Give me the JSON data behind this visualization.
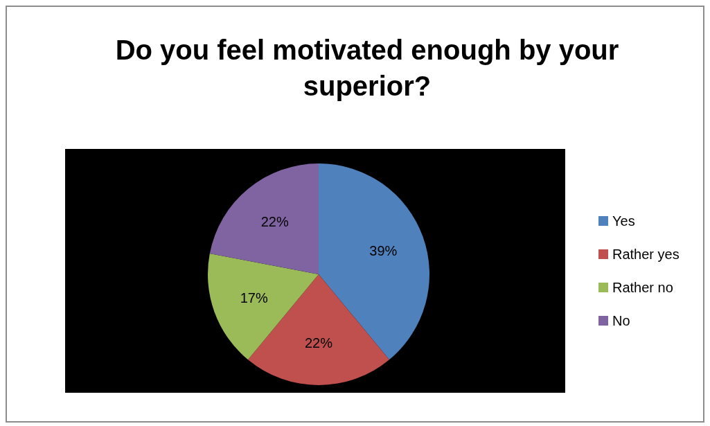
{
  "chart_data": {
    "type": "pie",
    "title": "Do you feel motivated enough by your superior?",
    "categories": [
      "Yes",
      "Rather yes",
      "Rather no",
      "No"
    ],
    "values": [
      39,
      22,
      17,
      22
    ],
    "colors": [
      "#4f81bd",
      "#c0504d",
      "#9bbb59",
      "#8064a2"
    ],
    "value_labels": [
      "39%",
      "22%",
      "17%",
      "22%"
    ],
    "legend": "right"
  }
}
